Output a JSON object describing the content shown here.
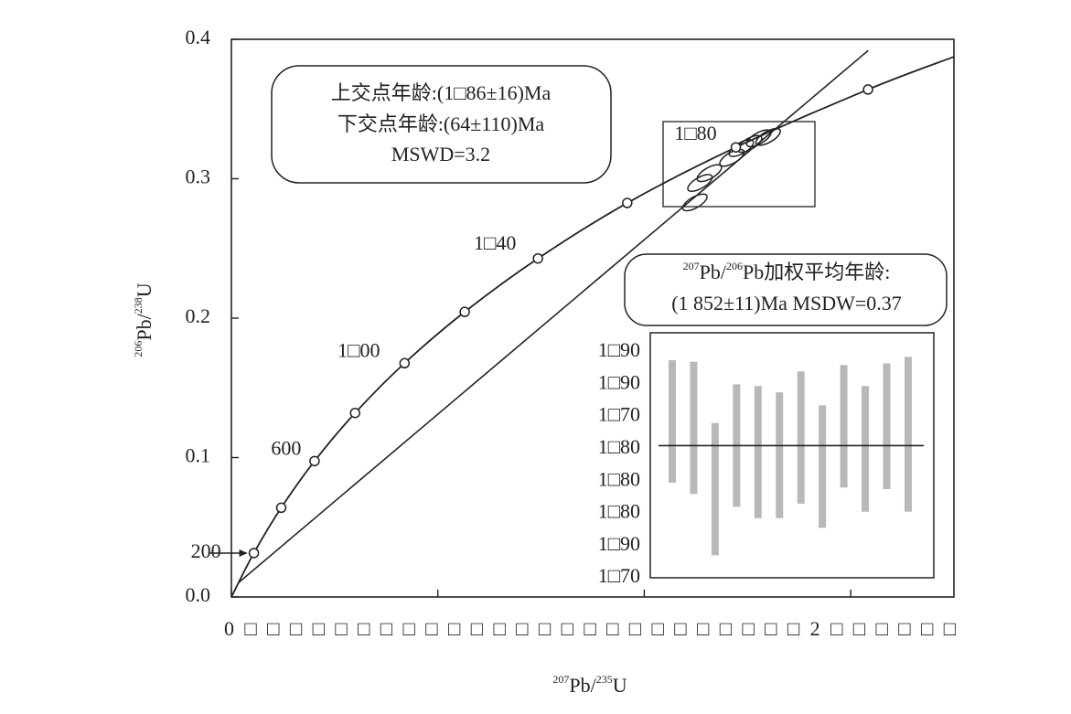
{
  "chart_data": [
    {
      "type": "line",
      "x_label_parts": [
        "207",
        "Pb/",
        "235",
        "U"
      ],
      "y_label_parts": [
        "206",
        "Pb/",
        "238",
        "U"
      ],
      "xlim": [
        0,
        7
      ],
      "xticks": [
        0,
        2,
        4,
        6
      ],
      "xtick_text": "0□□□□□□□□□□□□□□□□□□□□□□□□□2□□□□□□",
      "ylim": [
        0,
        0.4
      ],
      "yticks": [
        {
          "value": 0,
          "label": "0.0"
        },
        0.1,
        0.2,
        0.3,
        0.4
      ],
      "concordia": {
        "x": [
          0,
          0.2177,
          0.4828,
          0.8056,
          1.1987,
          1.6775,
          2.2603,
          2.97,
          3.835,
          4.887,
          6.168,
          7.0
        ],
        "y": [
          0,
          0.0315,
          0.064,
          0.0975,
          0.132,
          0.1677,
          0.2045,
          0.2428,
          0.2826,
          0.3225,
          0.364,
          0.3875
        ]
      },
      "age_points": {
        "x": [
          0.2177,
          0.4828,
          0.8056,
          1.1987,
          1.6775,
          2.2603,
          2.97,
          3.835,
          4.887,
          6.168
        ],
        "y": [
          0.0315,
          0.064,
          0.0975,
          0.132,
          0.1677,
          0.2045,
          0.2428,
          0.2826,
          0.3225,
          0.364
        ],
        "labels": [
          "200",
          null,
          "600",
          null,
          "1□00",
          null,
          "1□40",
          null,
          "1□80",
          null
        ]
      },
      "discordia": {
        "x": [
          0.065,
          6.17
        ],
        "y": [
          0.01,
          0.392
        ]
      },
      "ellipses": {
        "x": [
          4.49,
          4.54,
          4.63,
          4.85,
          4.94,
          5.02,
          5.11,
          5.2
        ],
        "y": [
          0.283,
          0.297,
          0.304,
          0.315,
          0.322,
          0.325,
          0.329,
          0.33
        ]
      },
      "intercepts": [
        "上交点年龄:(1□86±16)Ma",
        "下交点年龄:(64±110)Ma",
        "MSWD=3.2"
      ],
      "weighted_mean": {
        "line1_parts": [
          "207",
          "Pb/",
          "206",
          "Pb加权平均年龄:"
        ],
        "line2": "(1 852±11)Ma  MSDW=0.37"
      }
    },
    {
      "type": "errorbar",
      "ylim": [
        1770,
        1922
      ],
      "yticks": [
        {
          "value": 1910,
          "label": "1□90"
        },
        {
          "value": 1890,
          "label": "1□90"
        },
        {
          "value": 1870,
          "label": "1□70"
        },
        {
          "value": 1850,
          "label": "1□80"
        },
        {
          "value": 1830,
          "label": "1□80"
        },
        {
          "value": 1810,
          "label": "1□80"
        },
        {
          "value": 1790,
          "label": "1□90"
        },
        {
          "value": 1770,
          "label": "1□70"
        }
      ],
      "values": [
        1867,
        1863,
        1825,
        1852,
        1848,
        1846,
        1857,
        1839,
        1864,
        1850,
        1864,
        1859
      ],
      "errors": [
        38,
        41,
        41,
        38,
        41,
        39,
        41,
        38,
        38,
        39,
        39,
        48
      ],
      "mean": 1852,
      "color": "#b8b8b8"
    }
  ]
}
